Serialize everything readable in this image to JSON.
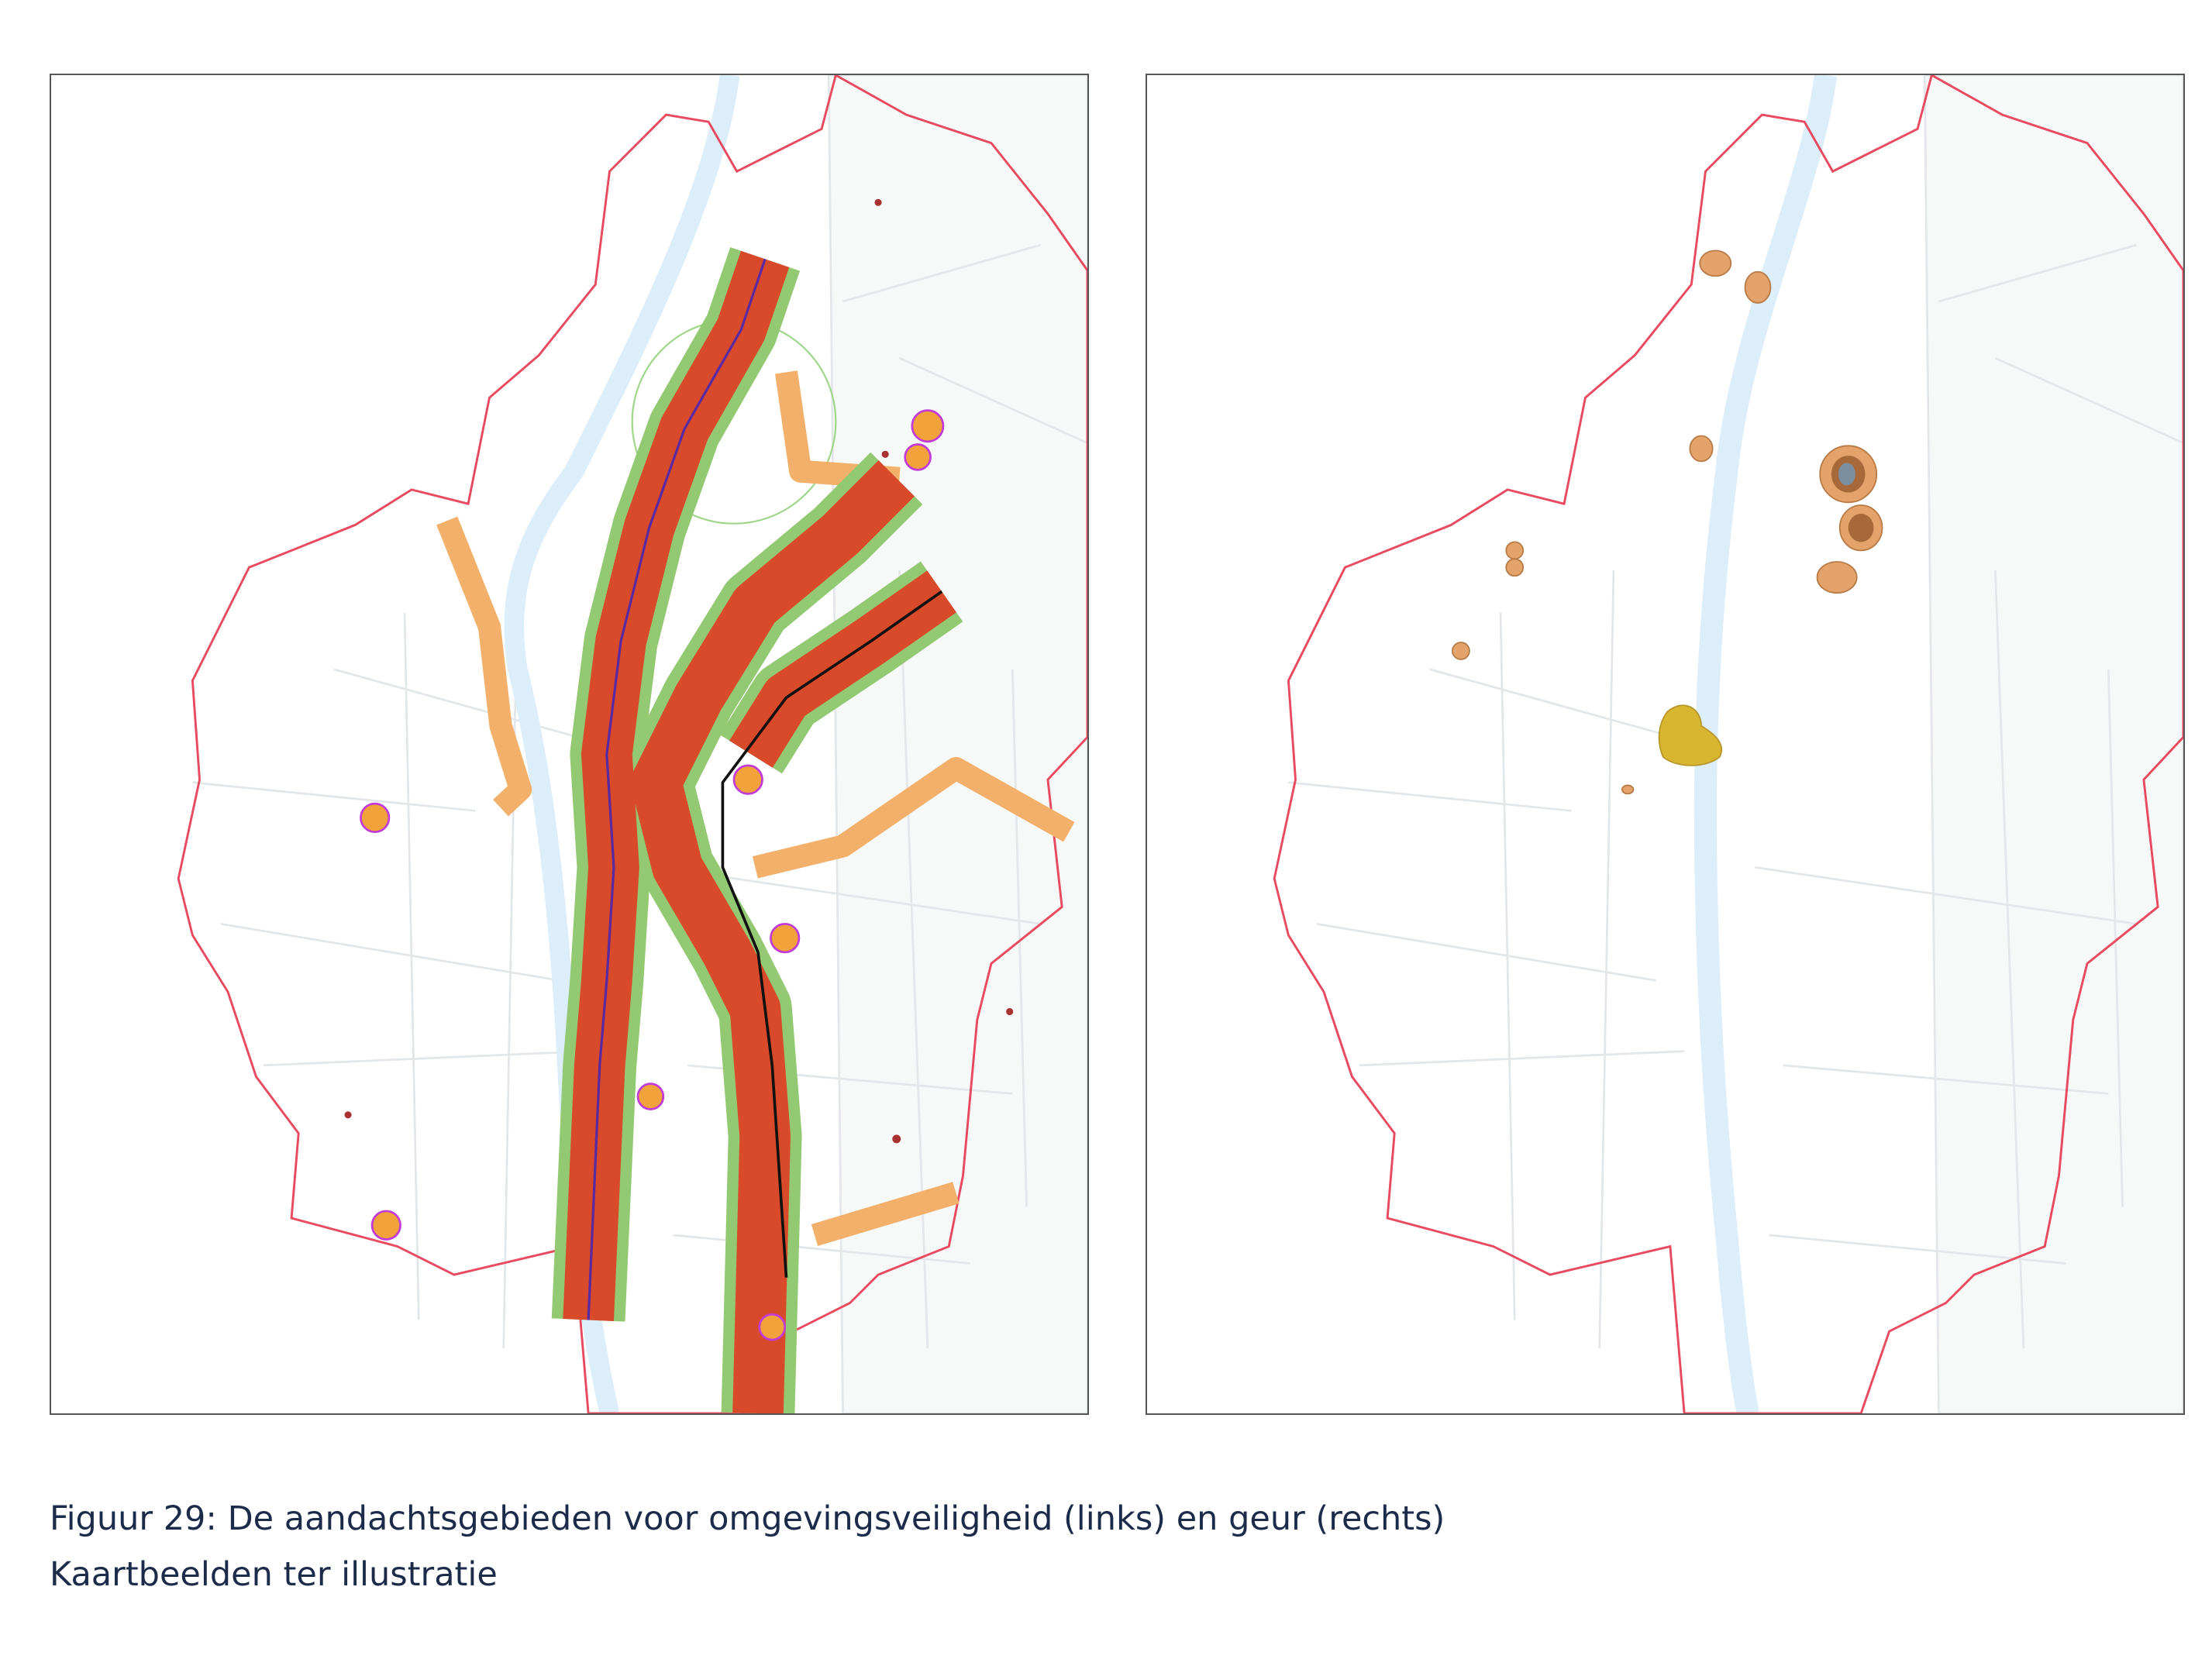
{
  "caption": {
    "line1": "Figuur 29: De aandachtsgebieden voor omgevingsveiligheid (links) en geur (rechts)",
    "line2": "Kaartbeelden ter illustratie"
  }
}
